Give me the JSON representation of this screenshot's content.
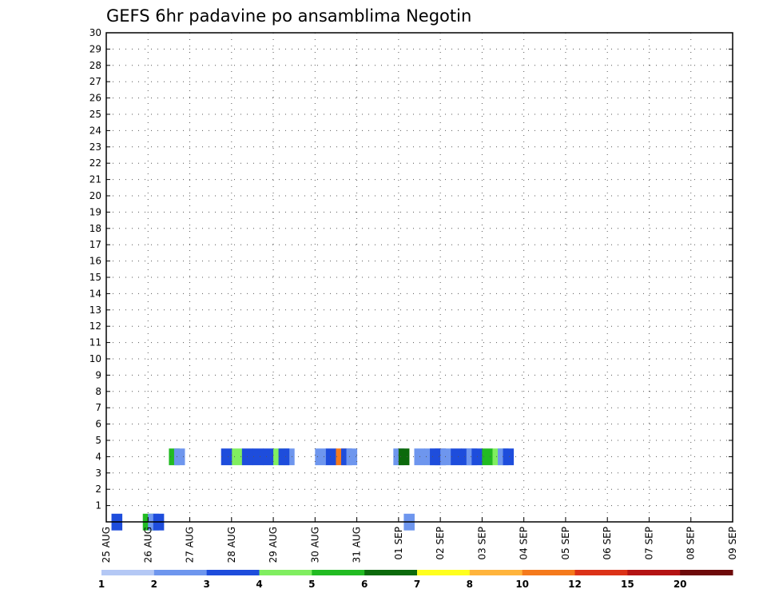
{
  "chart_data": {
    "type": "heatmap",
    "title": "GEFS 6hr padavine po ansamblima Negotin",
    "x_tick_labels": [
      "25 AUG",
      "26 AUG",
      "27 AUG",
      "28 AUG",
      "29 AUG",
      "30 AUG",
      "31 AUG",
      "01 SEP",
      "02 SEP",
      "03 SEP",
      "04 SEP",
      "05 SEP",
      "06 SEP",
      "07 SEP",
      "08 SEP",
      "09 SEP"
    ],
    "x_steps_per_day": 4,
    "y_tick_labels": [
      "1",
      "2",
      "3",
      "4",
      "5",
      "6",
      "7",
      "8",
      "9",
      "10",
      "11",
      "12",
      "13",
      "14",
      "15",
      "16",
      "17",
      "18",
      "19",
      "20",
      "21",
      "22",
      "23",
      "24",
      "25",
      "26",
      "27",
      "28",
      "29",
      "30"
    ],
    "ylim": [
      0,
      30
    ],
    "grid": true,
    "colorbar": {
      "labels": [
        "1",
        "2",
        "3",
        "4",
        "5",
        "6",
        "7",
        "8",
        "10",
        "12",
        "15",
        "20"
      ],
      "colors": [
        "#b4c8f5",
        "#6e96ee",
        "#1e4ddc",
        "#80ee60",
        "#22bb22",
        "#0c6a0c",
        "#ffff1e",
        "#ffb43c",
        "#f57a1c",
        "#dc3218",
        "#b41414",
        "#6e0a0a"
      ]
    },
    "cells": [
      [
        0.5,
        0,
        2
      ],
      [
        3.5,
        0,
        4
      ],
      [
        4,
        0,
        1
      ],
      [
        4.5,
        0,
        2
      ],
      [
        28.5,
        0,
        1
      ],
      [
        6,
        4,
        4
      ],
      [
        6.5,
        4,
        1
      ],
      [
        17,
        4,
        1
      ],
      [
        27.5,
        4,
        1
      ],
      [
        28,
        4,
        5
      ],
      [
        29.5,
        4,
        1
      ],
      [
        30.5,
        4,
        1
      ],
      [
        31,
        4,
        2
      ],
      [
        31.5,
        4,
        2
      ],
      [
        32,
        4,
        1
      ],
      [
        33,
        4,
        2
      ],
      [
        34,
        4,
        2
      ],
      [
        34.5,
        4,
        1
      ],
      [
        35,
        4,
        2
      ],
      [
        36,
        4,
        4
      ],
      [
        37,
        4,
        3
      ],
      [
        37.5,
        4,
        1
      ],
      [
        38,
        4,
        2
      ],
      [
        12,
        4,
        3
      ],
      [
        13,
        4,
        2
      ],
      [
        11,
        4,
        2
      ],
      [
        14,
        4,
        2
      ],
      [
        21,
        4,
        2
      ],
      [
        22,
        4,
        8
      ],
      [
        20,
        4,
        1
      ],
      [
        15,
        4,
        2
      ],
      [
        16,
        4,
        3
      ],
      [
        16.5,
        4,
        2
      ],
      [
        22.5,
        4,
        2
      ],
      [
        23,
        4,
        1
      ]
    ]
  }
}
